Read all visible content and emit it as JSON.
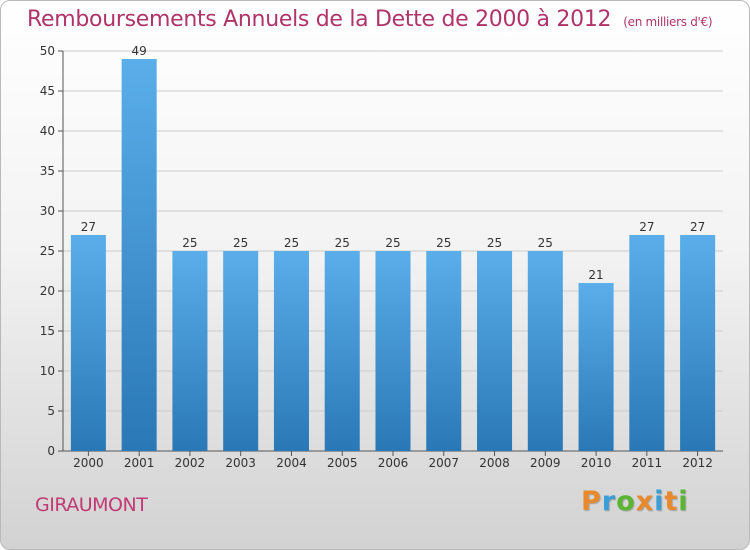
{
  "title": "Remboursements Annuels de la Dette de 2000 à 2012",
  "unit": "(en milliers d'€)",
  "place": "GIRAUMONT",
  "logo": {
    "letters": [
      "P",
      "r",
      "o",
      "x",
      "i",
      "t",
      "i"
    ],
    "colors": [
      "#e8892b",
      "#3a9fd6",
      "#5ab531",
      "#e8892b",
      "#3a9fd6",
      "#e8892b",
      "#5ab531"
    ]
  },
  "colors": {
    "bar_top": "#5aaeea",
    "bar_bottom": "#2a78b6",
    "title": "#b0346a",
    "grid": "#cccccc"
  },
  "chart_data": {
    "type": "bar",
    "categories": [
      "2000",
      "2001",
      "2002",
      "2003",
      "2004",
      "2005",
      "2006",
      "2007",
      "2008",
      "2009",
      "2010",
      "2011",
      "2012"
    ],
    "values": [
      27,
      49,
      25,
      25,
      25,
      25,
      25,
      25,
      25,
      25,
      21,
      27,
      27
    ],
    "data_labels": [
      "27",
      "49",
      "25",
      "25",
      "25",
      "25",
      "25",
      "25",
      "25",
      "25",
      "21",
      "27",
      "27"
    ],
    "yticks": [
      0,
      5,
      10,
      15,
      20,
      25,
      30,
      35,
      40,
      45,
      50
    ],
    "ylim": [
      0,
      50
    ],
    "grid": true
  }
}
